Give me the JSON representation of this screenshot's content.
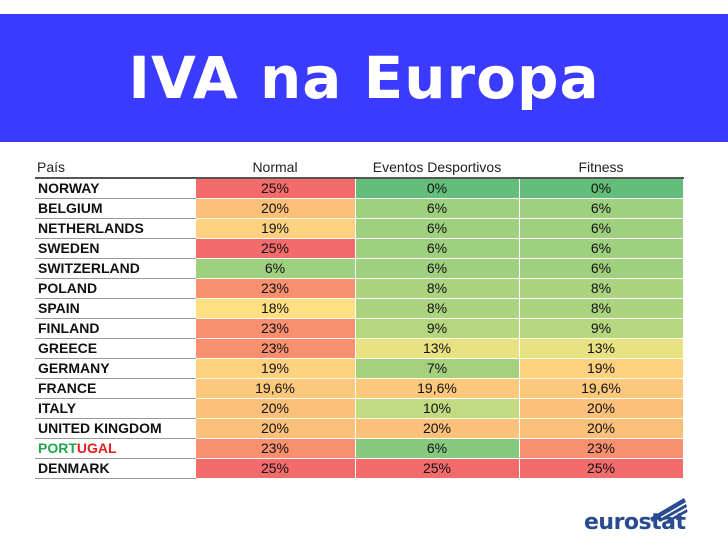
{
  "title": "IVA na Europa",
  "table": {
    "headers": [
      "País",
      "Normal",
      "Eventos Desportivos",
      "Fitness"
    ],
    "rows": [
      {
        "country": "NORWAY",
        "normal": "25%",
        "eventos": "0%",
        "fitness": "0%",
        "colors": [
          "#f46b6b",
          "#63be7b",
          "#63be7b"
        ]
      },
      {
        "country": "BELGIUM",
        "normal": "20%",
        "eventos": "6%",
        "fitness": "6%",
        "colors": [
          "#fbc07a",
          "#9fd07f",
          "#9fd07f"
        ]
      },
      {
        "country": "NETHERLANDS",
        "normal": "19%",
        "eventos": "6%",
        "fitness": "6%",
        "colors": [
          "#fdd17f",
          "#9fd07f",
          "#9fd07f"
        ]
      },
      {
        "country": "SWEDEN",
        "normal": "25%",
        "eventos": "6%",
        "fitness": "6%",
        "colors": [
          "#f46b6b",
          "#9fd07f",
          "#9fd07f"
        ]
      },
      {
        "country": "SWITZERLAND",
        "normal": "6%",
        "eventos": "6%",
        "fitness": "6%",
        "colors": [
          "#9fd07f",
          "#9fd07f",
          "#9fd07f"
        ]
      },
      {
        "country": "POLAND",
        "normal": "23%",
        "eventos": "8%",
        "fitness": "8%",
        "colors": [
          "#f8906f",
          "#acd480",
          "#acd480"
        ]
      },
      {
        "country": "SPAIN",
        "normal": "18%",
        "eventos": "8%",
        "fitness": "8%",
        "colors": [
          "#fee082",
          "#acd480",
          "#acd480"
        ]
      },
      {
        "country": "FINLAND",
        "normal": "23%",
        "eventos": "9%",
        "fitness": "9%",
        "colors": [
          "#f8906f",
          "#b4d780",
          "#b4d780"
        ]
      },
      {
        "country": "GREECE",
        "normal": "23%",
        "eventos": "13%",
        "fitness": "13%",
        "colors": [
          "#f8906f",
          "#e8e283",
          "#e8e283"
        ]
      },
      {
        "country": "GERMANY",
        "normal": "19%",
        "eventos": "7%",
        "fitness": "19%",
        "colors": [
          "#fdd17f",
          "#a5d17f",
          "#fdd17f"
        ]
      },
      {
        "country": "FRANCE",
        "normal": "19,6%",
        "eventos": "19,6%",
        "fitness": "19,6%",
        "colors": [
          "#fcc87c",
          "#fcc87c",
          "#fcc87c"
        ]
      },
      {
        "country": "ITALY",
        "normal": "20%",
        "eventos": "10%",
        "fitness": "20%",
        "colors": [
          "#fbc07a",
          "#c2da81",
          "#fbc07a"
        ]
      },
      {
        "country": "UNITED KINGDOM",
        "normal": "20%",
        "eventos": "20%",
        "fitness": "20%",
        "colors": [
          "#fbc07a",
          "#fbc07a",
          "#fbc07a"
        ]
      },
      {
        "country_part1": "PORT",
        "country_part2": "UGAL",
        "normal": "23%",
        "eventos": "6%",
        "fitness": "23%",
        "colors": [
          "#f8906f",
          "#86c87d",
          "#f8906f"
        ]
      },
      {
        "country": "DENMARK",
        "normal": "25%",
        "eventos": "25%",
        "fitness": "25%",
        "colors": [
          "#f46b6b",
          "#f46b6b",
          "#f46b6b"
        ]
      }
    ]
  },
  "logo": {
    "text": "eurostat",
    "icon": "eurostat-bars-icon",
    "color": "#2a4b8f"
  }
}
